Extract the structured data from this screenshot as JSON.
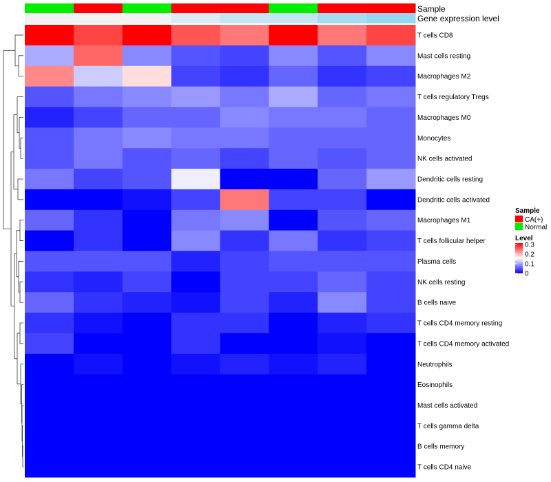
{
  "chart_data": {
    "type": "heatmap",
    "title": "",
    "annotation_tracks": [
      {
        "name": "Sample",
        "values": [
          "Normal",
          "CA(+)",
          "Normal",
          "CA(+)",
          "CA(+)",
          "Normal",
          "CA(+)",
          "CA(+)"
        ]
      },
      {
        "name": "Gene expression level",
        "values": [
          0.0,
          0.0,
          0.0,
          0.15,
          0.3,
          0.3,
          0.5,
          0.6
        ]
      }
    ],
    "rows": [
      "T cells CD8",
      "Mast cells resting",
      "Macrophages M2",
      "T cells regulatory  Tregs",
      "Macrophages M0",
      "Monocytes",
      "NK cells activated",
      "Dendritic cells resting",
      "Dendritic cells activated",
      "Macrophages M1",
      "T cells follicular helper",
      "Plasma cells",
      "NK cells resting",
      "B cells naive",
      "T cells CD4 memory resting",
      "T cells CD4 memory activated",
      "Neutrophils",
      "Eosinophils",
      "Mast cells activated",
      "T cells gamma delta",
      "B cells memory",
      "T cells CD4 naive"
    ],
    "values": [
      [
        0.3,
        0.26,
        0.3,
        0.25,
        0.23,
        0.3,
        0.23,
        0.26
      ],
      [
        0.1,
        0.24,
        0.08,
        0.05,
        0.04,
        0.08,
        0.05,
        0.08
      ],
      [
        0.22,
        0.12,
        0.17,
        0.04,
        0.03,
        0.06,
        0.03,
        0.04
      ],
      [
        0.05,
        0.07,
        0.08,
        0.09,
        0.07,
        0.1,
        0.06,
        0.07
      ],
      [
        0.02,
        0.04,
        0.06,
        0.06,
        0.08,
        0.07,
        0.07,
        0.06
      ],
      [
        0.05,
        0.07,
        0.08,
        0.07,
        0.07,
        0.06,
        0.06,
        0.06
      ],
      [
        0.05,
        0.07,
        0.05,
        0.06,
        0.04,
        0.06,
        0.05,
        0.06
      ],
      [
        0.07,
        0.04,
        0.05,
        0.14,
        0.0,
        0.0,
        0.06,
        0.09
      ],
      [
        0.0,
        0.0,
        0.01,
        0.04,
        0.23,
        0.04,
        0.04,
        0.0
      ],
      [
        0.06,
        0.03,
        0.0,
        0.07,
        0.08,
        0.0,
        0.05,
        0.06
      ],
      [
        0.0,
        0.03,
        0.0,
        0.08,
        0.03,
        0.07,
        0.03,
        0.04
      ],
      [
        0.05,
        0.05,
        0.05,
        0.02,
        0.04,
        0.05,
        0.05,
        0.05
      ],
      [
        0.03,
        0.02,
        0.04,
        0.0,
        0.04,
        0.04,
        0.06,
        0.04
      ],
      [
        0.06,
        0.03,
        0.02,
        0.01,
        0.04,
        0.02,
        0.08,
        0.04
      ],
      [
        0.03,
        0.01,
        0.0,
        0.03,
        0.03,
        0.0,
        0.02,
        0.03
      ],
      [
        0.04,
        0.0,
        0.0,
        0.03,
        0.0,
        0.0,
        0.01,
        0.0
      ],
      [
        0.0,
        0.01,
        0.0,
        0.01,
        0.02,
        0.01,
        0.02,
        0.0
      ],
      [
        0.0,
        0.0,
        0.0,
        0.0,
        0.0,
        0.0,
        0.0,
        0.0
      ],
      [
        0.0,
        0.0,
        0.0,
        0.0,
        0.0,
        0.0,
        0.0,
        0.0
      ],
      [
        0.0,
        0.0,
        0.0,
        0.0,
        0.0,
        0.0,
        0.0,
        0.0
      ],
      [
        0.0,
        0.0,
        0.0,
        0.0,
        0.0,
        0.0,
        0.0,
        0.0
      ],
      [
        0.0,
        0.0,
        0.0,
        0.0,
        0.0,
        0.0,
        0.0,
        0.0
      ]
    ],
    "color_scale": {
      "low": "#0000ff",
      "mid": "#ffffff",
      "high": "#ff0000",
      "min": 0,
      "mid_value": 0.15,
      "max": 0.3
    },
    "row_dendrogram": true,
    "legend": {
      "position": "right",
      "sample": {
        "title": "Sample",
        "items": [
          {
            "label": "CA(+)",
            "color": "#ff0000"
          },
          {
            "label": "Normal",
            "color": "#00ee00"
          }
        ]
      },
      "level": {
        "title": "Level",
        "ticks": [
          0.3,
          0.2,
          0.1,
          0
        ],
        "tick_labels": [
          "0.3",
          "0.2",
          "0.1",
          "0"
        ]
      }
    }
  },
  "colors": {
    "sample": {
      "CA(+)": "#ff0000",
      "Normal": "#00ee00"
    },
    "expression_low": "#f2f2f2",
    "expression_high": "#57c5f0"
  }
}
